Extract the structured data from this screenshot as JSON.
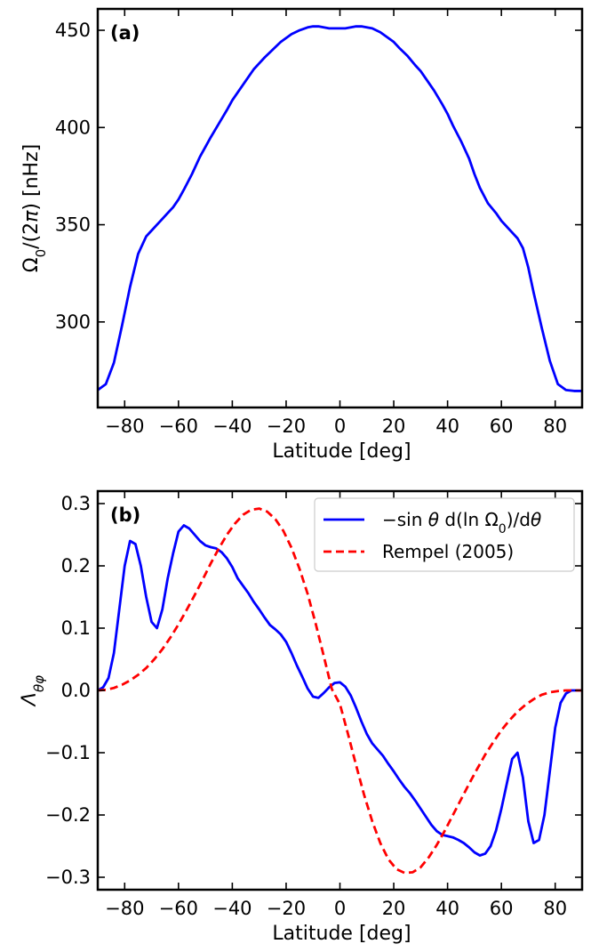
{
  "chart_data": [
    {
      "panel_label": "(a)",
      "type": "line",
      "xlabel": "Latitude [deg]",
      "ylabel": "Ω₀/(2π) [nHz]",
      "xlim": [
        -90,
        90
      ],
      "ylim": [
        256,
        461
      ],
      "xticks": [
        -80,
        -60,
        -40,
        -20,
        0,
        20,
        40,
        60,
        80
      ],
      "yticks": [
        300,
        350,
        400,
        450
      ],
      "grid": false,
      "series": [
        {
          "color": "#0000ff",
          "dash": "solid",
          "x": [
            -90,
            -87,
            -84,
            -81,
            -78,
            -75,
            -72,
            -70,
            -68,
            -66,
            -64,
            -62,
            -60,
            -58,
            -55,
            -52,
            -50,
            -48,
            -45,
            -42,
            -40,
            -38,
            -35,
            -32,
            -30,
            -28,
            -25,
            -22,
            -20,
            -18,
            -15,
            -12,
            -10,
            -8,
            -6,
            -4,
            -2,
            0,
            2,
            4,
            6,
            8,
            10,
            12,
            15,
            18,
            20,
            22,
            25,
            28,
            30,
            32,
            35,
            38,
            40,
            42,
            45,
            48,
            50,
            52,
            55,
            58,
            60,
            62,
            64,
            66,
            68,
            70,
            72,
            75,
            78,
            81,
            84,
            87,
            90
          ],
          "values": [
            265,
            268,
            279,
            298,
            318,
            335,
            344,
            347,
            350,
            353,
            356,
            359,
            363,
            368,
            376,
            385,
            390,
            395,
            402,
            409,
            414,
            418,
            424,
            430,
            433,
            436,
            440,
            444,
            446,
            448,
            450,
            451.5,
            452,
            452,
            451.5,
            451,
            451,
            451,
            451,
            451.5,
            452,
            452,
            451.5,
            451,
            449,
            446,
            444,
            441,
            437,
            432,
            429,
            425,
            419,
            412,
            407,
            401,
            393,
            384,
            376,
            369,
            361,
            356,
            352,
            349,
            346,
            343,
            338,
            328,
            315,
            297,
            280,
            268,
            265,
            264.5,
            264.5
          ]
        }
      ]
    },
    {
      "panel_label": "(b)",
      "type": "line",
      "xlabel": "Latitude [deg]",
      "ylabel": "Λθφ",
      "xlim": [
        -90,
        90
      ],
      "ylim": [
        -0.32,
        0.32
      ],
      "xticks": [
        -80,
        -60,
        -40,
        -20,
        0,
        20,
        40,
        60,
        80
      ],
      "yticks": [
        -0.3,
        -0.2,
        -0.1,
        0.0,
        0.1,
        0.2,
        0.3
      ],
      "ytick_labels": [
        "−0.3",
        "−0.2",
        "−0.1",
        "0.0",
        "0.1",
        "0.2",
        "0.3"
      ],
      "grid": false,
      "legend": "top-right",
      "series": [
        {
          "name": "−sin θ d(ln Ω₀)/dθ",
          "color": "#0000ff",
          "dash": "solid",
          "x": [
            -90,
            -88,
            -86,
            -84,
            -82,
            -80,
            -78,
            -76,
            -74,
            -72,
            -70,
            -68,
            -66,
            -64,
            -62,
            -60,
            -58,
            -56,
            -54,
            -52,
            -50,
            -48,
            -46,
            -44,
            -42,
            -40,
            -38,
            -36,
            -34,
            -32,
            -30,
            -28,
            -26,
            -24,
            -22,
            -20,
            -18,
            -16,
            -14,
            -12,
            -10,
            -8,
            -6,
            -4,
            -2,
            0,
            2,
            4,
            6,
            8,
            10,
            12,
            14,
            16,
            18,
            20,
            22,
            24,
            26,
            28,
            30,
            32,
            34,
            36,
            38,
            40,
            42,
            44,
            46,
            48,
            50,
            52,
            54,
            56,
            58,
            60,
            62,
            64,
            66,
            68,
            70,
            72,
            74,
            76,
            78,
            80,
            82,
            84,
            86,
            88,
            90
          ],
          "values": [
            0,
            0.005,
            0.02,
            0.06,
            0.13,
            0.2,
            0.24,
            0.235,
            0.2,
            0.15,
            0.11,
            0.1,
            0.13,
            0.18,
            0.22,
            0.255,
            0.265,
            0.26,
            0.25,
            0.24,
            0.233,
            0.23,
            0.228,
            0.222,
            0.212,
            0.198,
            0.18,
            0.168,
            0.156,
            0.142,
            0.13,
            0.117,
            0.105,
            0.098,
            0.09,
            0.078,
            0.06,
            0.04,
            0.022,
            0.003,
            -0.01,
            -0.012,
            -0.004,
            0.005,
            0.012,
            0.013,
            0.006,
            -0.008,
            -0.028,
            -0.05,
            -0.07,
            -0.085,
            -0.095,
            -0.105,
            -0.118,
            -0.13,
            -0.143,
            -0.155,
            -0.165,
            -0.177,
            -0.19,
            -0.203,
            -0.216,
            -0.226,
            -0.232,
            -0.234,
            -0.236,
            -0.24,
            -0.245,
            -0.252,
            -0.26,
            -0.265,
            -0.262,
            -0.25,
            -0.225,
            -0.19,
            -0.15,
            -0.11,
            -0.1,
            -0.14,
            -0.21,
            -0.245,
            -0.24,
            -0.2,
            -0.13,
            -0.06,
            -0.02,
            -0.005,
            0,
            0,
            0
          ]
        },
        {
          "name": "Rempel (2005)",
          "color": "#ff0000",
          "dash": "dashed",
          "x": [
            -90,
            -87,
            -84,
            -81,
            -78,
            -75,
            -72,
            -69,
            -66,
            -63,
            -60,
            -57,
            -54,
            -51,
            -48,
            -45,
            -42,
            -39,
            -36,
            -33,
            -30,
            -27,
            -24,
            -21,
            -18,
            -15,
            -12,
            -9,
            -6,
            -3,
            0,
            3,
            6,
            9,
            12,
            15,
            18,
            21,
            24,
            27,
            30,
            33,
            36,
            39,
            42,
            45,
            48,
            51,
            54,
            57,
            60,
            63,
            66,
            69,
            72,
            75,
            78,
            81,
            84,
            87,
            90
          ],
          "values": [
            0,
            0.001,
            0.004,
            0.009,
            0.016,
            0.025,
            0.036,
            0.05,
            0.066,
            0.085,
            0.106,
            0.129,
            0.153,
            0.178,
            0.204,
            0.228,
            0.25,
            0.268,
            0.282,
            0.29,
            0.292,
            0.287,
            0.275,
            0.256,
            0.229,
            0.195,
            0.155,
            0.107,
            0.055,
            0.002,
            -0.022,
            -0.07,
            -0.12,
            -0.168,
            -0.21,
            -0.245,
            -0.271,
            -0.287,
            -0.293,
            -0.292,
            -0.284,
            -0.268,
            -0.248,
            -0.225,
            -0.2,
            -0.175,
            -0.15,
            -0.126,
            -0.103,
            -0.083,
            -0.064,
            -0.048,
            -0.034,
            -0.023,
            -0.014,
            -0.007,
            -0.003,
            -0.001,
            0,
            0,
            0
          ]
        }
      ]
    }
  ]
}
